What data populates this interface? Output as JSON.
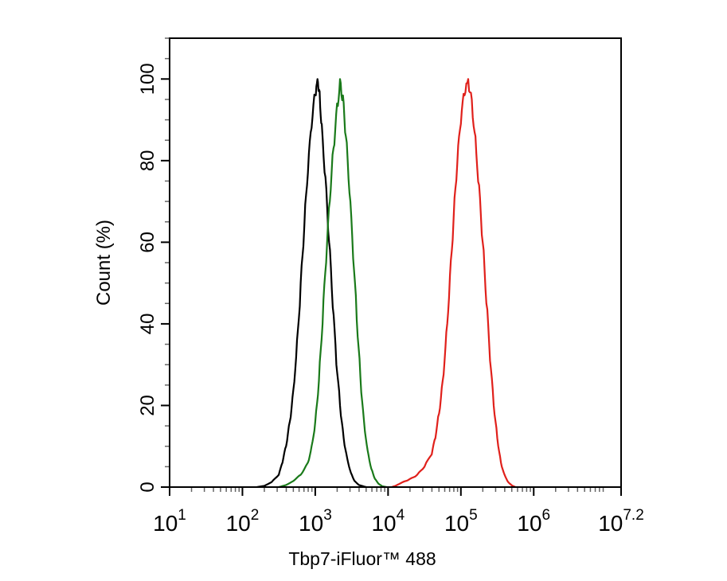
{
  "chart_data": {
    "type": "line",
    "title": "",
    "xlabel": "Tbp7-iFluor™ 488",
    "ylabel": "Count  (%)",
    "x_scale": "log10",
    "xlim": [
      10,
      15848932
    ],
    "ylim": [
      0,
      110
    ],
    "x_ticks": [
      {
        "value": 10,
        "base": "10",
        "exp": "1"
      },
      {
        "value": 100,
        "base": "10",
        "exp": "2"
      },
      {
        "value": 1000,
        "base": "10",
        "exp": "3"
      },
      {
        "value": 10000,
        "base": "10",
        "exp": "4"
      },
      {
        "value": 100000,
        "base": "10",
        "exp": "5"
      },
      {
        "value": 1000000,
        "base": "10",
        "exp": "6"
      },
      {
        "value": 15848932,
        "base": "10",
        "exp": "7.2"
      }
    ],
    "y_ticks": [
      {
        "value": 0,
        "label": "0"
      },
      {
        "value": 20,
        "label": "20"
      },
      {
        "value": 40,
        "label": "40"
      },
      {
        "value": 60,
        "label": "60"
      },
      {
        "value": 80,
        "label": "80"
      },
      {
        "value": 100,
        "label": "100"
      }
    ],
    "grid": false,
    "legend": "none",
    "series": [
      {
        "color": "#000000",
        "points": [
          [
            158,
            0
          ],
          [
            200,
            0.3
          ],
          [
            251,
            1.2
          ],
          [
            316,
            3
          ],
          [
            355,
            6
          ],
          [
            398,
            10
          ],
          [
            447,
            16
          ],
          [
            501,
            24
          ],
          [
            562,
            36
          ],
          [
            631,
            50
          ],
          [
            708,
            64
          ],
          [
            794,
            77
          ],
          [
            891,
            88
          ],
          [
            1000,
            96
          ],
          [
            1072,
            100
          ],
          [
            1148,
            97
          ],
          [
            1230,
            89
          ],
          [
            1380,
            76
          ],
          [
            1549,
            60
          ],
          [
            1738,
            44
          ],
          [
            1950,
            30
          ],
          [
            2188,
            20
          ],
          [
            2455,
            12
          ],
          [
            2754,
            7
          ],
          [
            3090,
            3.5
          ],
          [
            3467,
            1.5
          ],
          [
            3981,
            0.5
          ],
          [
            5012,
            0
          ]
        ]
      },
      {
        "color": "#1a7a1a",
        "points": [
          [
            316,
            0
          ],
          [
            398,
            0.5
          ],
          [
            501,
            1.5
          ],
          [
            631,
            3
          ],
          [
            794,
            6
          ],
          [
            891,
            10
          ],
          [
            1000,
            16
          ],
          [
            1122,
            26
          ],
          [
            1259,
            40
          ],
          [
            1413,
            55
          ],
          [
            1585,
            70
          ],
          [
            1778,
            83
          ],
          [
            1995,
            94
          ],
          [
            2188,
            100
          ],
          [
            2399,
            96
          ],
          [
            2630,
            86
          ],
          [
            2951,
            72
          ],
          [
            3311,
            56
          ],
          [
            3715,
            41
          ],
          [
            4169,
            27
          ],
          [
            4677,
            16
          ],
          [
            5248,
            9
          ],
          [
            5888,
            4.5
          ],
          [
            6607,
            2
          ],
          [
            7413,
            0.8
          ],
          [
            8318,
            0.2
          ],
          [
            9550,
            0
          ]
        ]
      },
      {
        "color": "#e0201b",
        "points": [
          [
            11220,
            0
          ],
          [
            12589,
            0.3
          ],
          [
            15849,
            1.2
          ],
          [
            20000,
            2
          ],
          [
            25119,
            3
          ],
          [
            31623,
            5
          ],
          [
            39811,
            8
          ],
          [
            44668,
            12
          ],
          [
            50119,
            18
          ],
          [
            56234,
            26
          ],
          [
            63096,
            38
          ],
          [
            70795,
            52
          ],
          [
            79433,
            66
          ],
          [
            89125,
            79
          ],
          [
            100000,
            89
          ],
          [
            112202,
            96
          ],
          [
            125893,
            100
          ],
          [
            141254,
            95
          ],
          [
            158489,
            86
          ],
          [
            177828,
            74
          ],
          [
            199526,
            60
          ],
          [
            223872,
            45
          ],
          [
            251189,
            31
          ],
          [
            281838,
            20
          ],
          [
            316228,
            12
          ],
          [
            354813,
            6
          ],
          [
            398107,
            3
          ],
          [
            446684,
            1.2
          ],
          [
            501187,
            0.4
          ],
          [
            562341,
            0
          ]
        ]
      }
    ]
  }
}
